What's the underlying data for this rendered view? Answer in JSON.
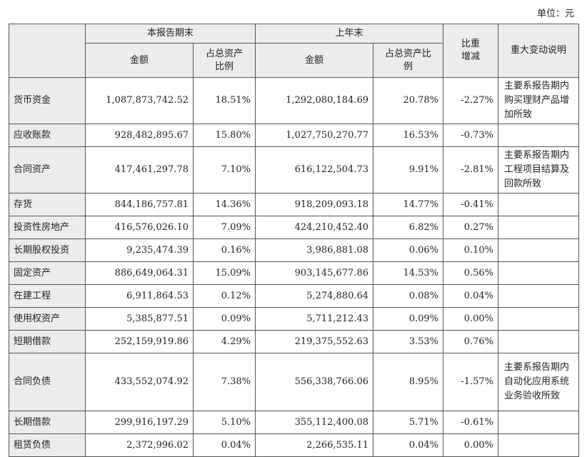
{
  "unit": "单位：元",
  "header": {
    "current_period": "本报告期末",
    "prior_year_end": "上年末",
    "change": "比重增减",
    "note": "重大变动说明",
    "sub": [
      "金额",
      "占总资产比例",
      "金额",
      "占总资产比例"
    ]
  },
  "rows": [
    [
      "货币资金",
      "1,087,873,742.52",
      "18.51%",
      "1,292,080,184.69",
      "20.78%",
      "-2.27%",
      "主要系报告期内购买理财产品增加所致"
    ],
    [
      "应收账款",
      "928,482,895.67",
      "15.80%",
      "1,027,750,270.77",
      "16.53%",
      "-0.73%"
    ],
    [
      "合同资产",
      "417,461,297.78",
      "7.10%",
      "616,122,504.73",
      "9.91%",
      "-2.81%",
      "主要系报告期内工程项目结算及回款所致"
    ],
    [
      "存货",
      "844,186,757.81",
      "14.36%",
      "918,209,093.18",
      "14.77%",
      "-0.41%"
    ],
    [
      "投资性房地产",
      "416,576,026.10",
      "7.09%",
      "424,210,452.40",
      "6.82%",
      "0.27%"
    ],
    [
      "长期股权投资",
      "9,235,474.39",
      "0.16%",
      "3,986,881.08",
      "0.06%",
      "0.10%"
    ],
    [
      "固定资产",
      "886,649,064.31",
      "15.09%",
      "903,145,677.86",
      "14.53%",
      "0.56%"
    ],
    [
      "在建工程",
      "6,911,864.53",
      "0.12%",
      "5,274,880.64",
      "0.08%",
      "0.04%"
    ],
    [
      "使用权资产",
      "5,385,877.51",
      "0.09%",
      "5,711,212.43",
      "0.09%",
      "0.00%"
    ],
    [
      "短期借款",
      "252,159,919.86",
      "4.29%",
      "219,375,552.63",
      "3.53%",
      "0.76%"
    ],
    [
      "合同负债",
      "433,552,074.92",
      "7.38%",
      "556,338,766.06",
      "8.95%",
      "-1.57%",
      "主要系报告期内自动化应用系统业务验收所致"
    ],
    [
      "长期借款",
      "299,916,197.29",
      "5.10%",
      "355,112,400.08",
      "5.71%",
      "-0.61%"
    ],
    [
      "租赁负债",
      "2,372,996.02",
      "0.04%",
      "2,266,535.11",
      "0.04%",
      "0.00%"
    ]
  ]
}
